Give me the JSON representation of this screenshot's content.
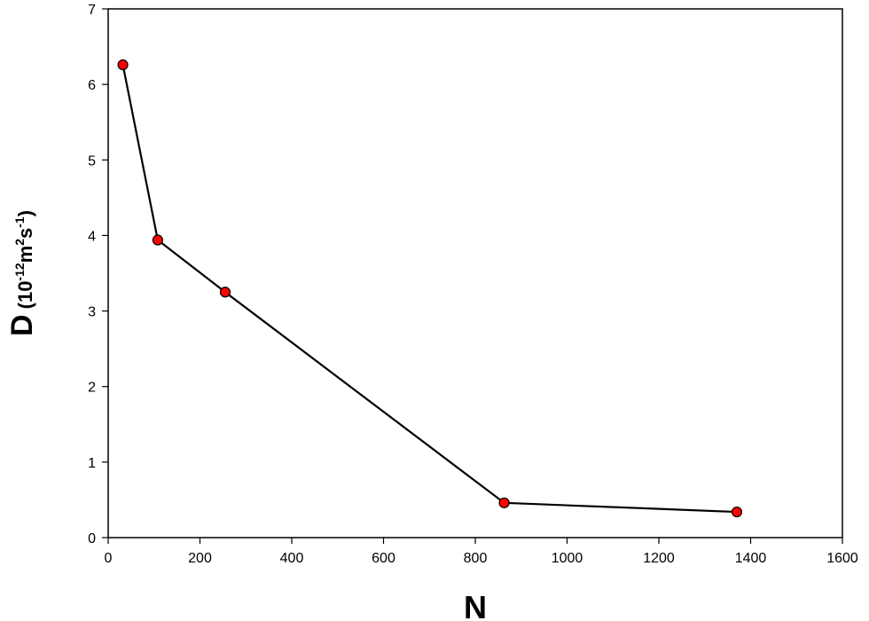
{
  "chart_data": {
    "type": "line",
    "xlabel": "N",
    "ylabel": {
      "main": "D",
      "open": "(10",
      "exp1": "-12",
      "unit_m": "m",
      "exp2": "2",
      "unit_s": "s",
      "exp3": "-1",
      "close": ")"
    },
    "xlim": [
      0,
      1600
    ],
    "ylim": [
      0,
      7
    ],
    "x_ticks": [
      0,
      200,
      400,
      600,
      800,
      1000,
      1200,
      1400,
      1600
    ],
    "y_ticks": [
      0,
      1,
      2,
      3,
      4,
      5,
      6,
      7
    ],
    "x_tick_labels": [
      "0",
      "200",
      "400",
      "600",
      "800",
      "1000",
      "1200",
      "1400",
      "1600"
    ],
    "y_tick_labels": [
      "0",
      "1",
      "2",
      "3",
      "4",
      "5",
      "6",
      "7"
    ],
    "grid": false,
    "series": [
      {
        "x": [
          32,
          108,
          255,
          863,
          1370
        ],
        "y": [
          6.26,
          3.94,
          3.25,
          0.46,
          0.34
        ],
        "line_color": "#000000",
        "marker_color": "#ff0000",
        "marker_edge": "#000000"
      }
    ]
  }
}
